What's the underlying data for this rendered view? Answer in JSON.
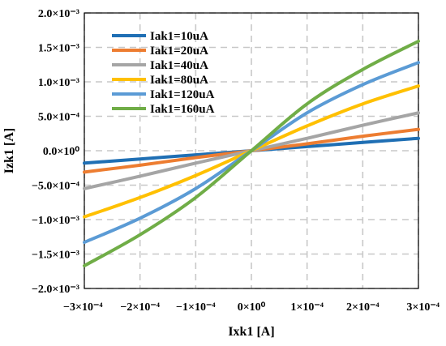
{
  "chart_data": {
    "type": "line",
    "title": "",
    "xlabel": "Ixk1 [A]",
    "ylabel": "Izk1 [A]",
    "xlim": [
      -0.0003,
      0.0003
    ],
    "ylim": [
      -0.002,
      0.002
    ],
    "x_ticks": [
      -0.0003,
      -0.0002,
      -0.0001,
      0,
      0.0001,
      0.0002,
      0.0003
    ],
    "x_tick_labels": [
      "−3×10⁻⁴",
      "−2×10⁻⁴",
      "−1×10⁻⁴",
      "0×10⁰",
      "1×10⁻⁴",
      "2×10⁻⁴",
      "3×10⁻⁴"
    ],
    "y_ticks": [
      -0.002,
      -0.0015,
      -0.001,
      -0.0005,
      0,
      0.0005,
      0.001,
      0.0015,
      0.002
    ],
    "y_tick_labels": [
      "−2.0×10⁻³",
      "−1.5×10⁻³",
      "−1.0×10⁻³",
      "−5.0×10⁻⁴",
      "0.0×10⁰",
      "5.0×10⁻⁴",
      "1.0×10⁻³",
      "1.5×10⁻³",
      "2.0×10⁻³"
    ],
    "grid": true,
    "legend_position": "top-left",
    "x": [
      -0.0003,
      -0.0002,
      -0.0001,
      0,
      0.0001,
      0.0002,
      0.0003
    ],
    "series": [
      {
        "name": "Iak1=10uA",
        "color": "#1f6fb4",
        "values": [
          -0.00018,
          -0.00012,
          -6e-05,
          0,
          6e-05,
          0.00012,
          0.00018
        ]
      },
      {
        "name": "Iak1=20uA",
        "color": "#ed7d31",
        "values": [
          -0.00031,
          -0.00021,
          -0.0001,
          0,
          0.0001,
          0.00021,
          0.00031
        ]
      },
      {
        "name": "Iak1=40uA",
        "color": "#a5a5a5",
        "values": [
          -0.00055,
          -0.00037,
          -0.00018,
          0,
          0.00018,
          0.00037,
          0.00055
        ]
      },
      {
        "name": "Iak1=80uA",
        "color": "#ffc000",
        "values": [
          -0.00096,
          -0.00068,
          -0.00036,
          0,
          0.00036,
          0.00068,
          0.00094
        ]
      },
      {
        "name": "Iak1=120uA",
        "color": "#5b9bd5",
        "values": [
          -0.00133,
          -0.00098,
          -0.00055,
          0,
          0.00055,
          0.00096,
          0.00128
        ]
      },
      {
        "name": "Iak1=160uA",
        "color": "#70ad47",
        "values": [
          -0.00167,
          -0.00122,
          -0.00068,
          0,
          0.00068,
          0.00118,
          0.00159
        ]
      }
    ]
  }
}
